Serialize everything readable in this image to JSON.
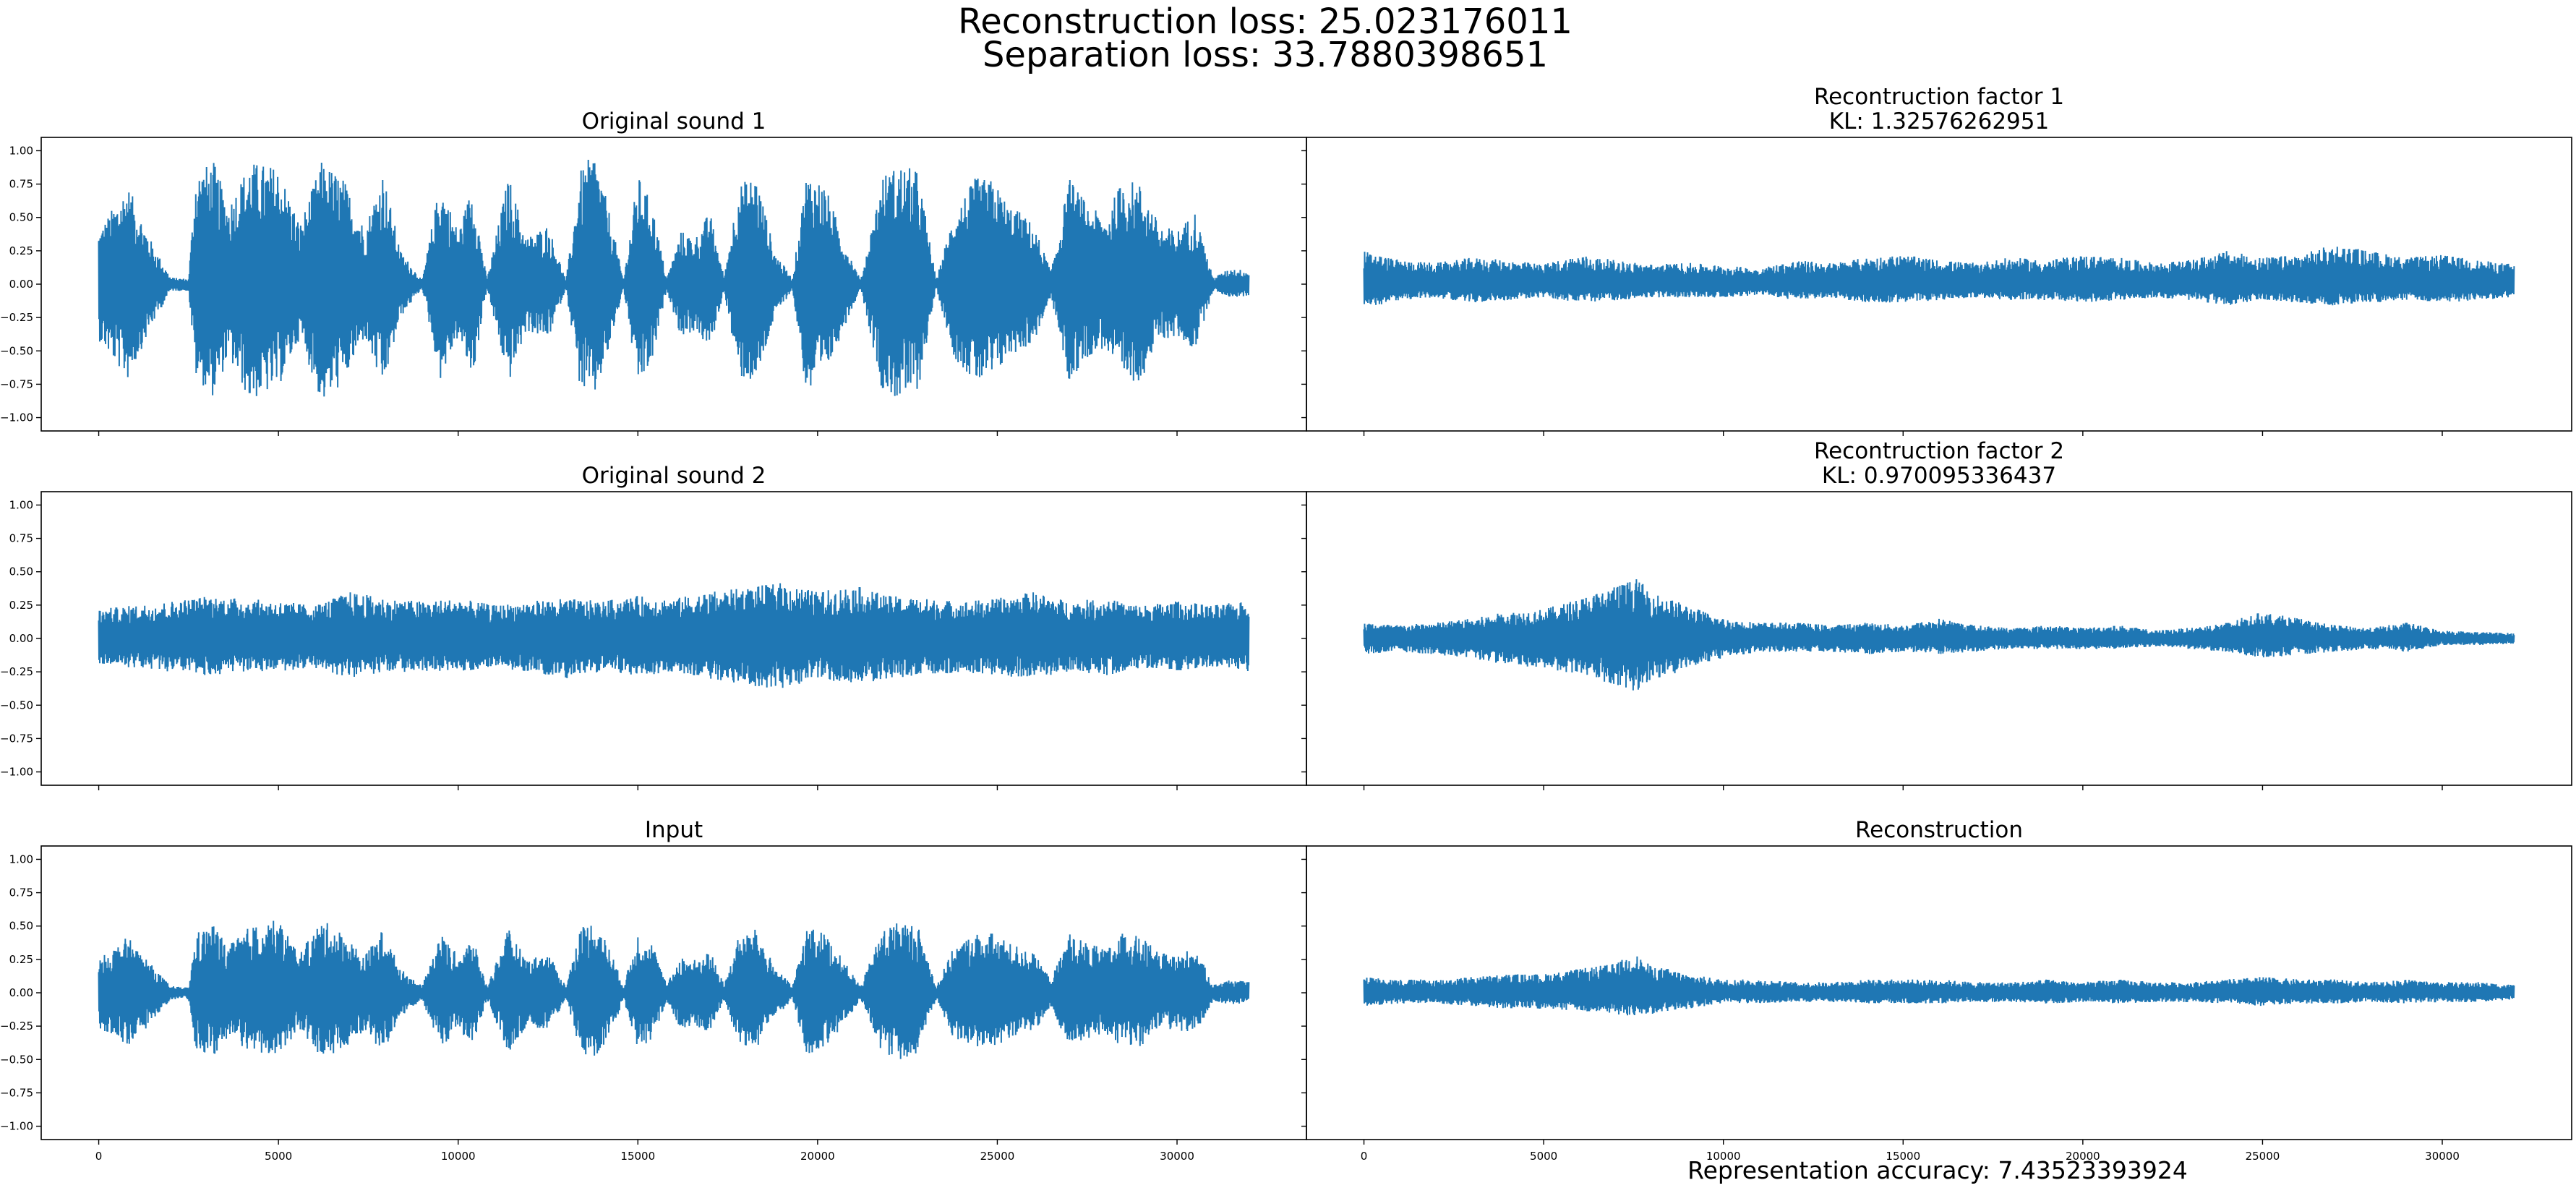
{
  "figure": {
    "suptitle_lines": [
      "Reconstruction loss: 25.023176011",
      "Separation loss: 33.7880398651"
    ],
    "footer": "Representation accuracy: 7.43523393924",
    "line_color": "#1f77b4"
  },
  "chart_data": {
    "type": "line",
    "grid": false,
    "shared_x_axis": true,
    "shared_y_axis": true,
    "xlim": [
      -1600,
      33600
    ],
    "ylim": [
      -1.1,
      1.1
    ],
    "x_ticks": [
      0,
      5000,
      10000,
      15000,
      20000,
      25000,
      30000
    ],
    "y_ticks": [
      -1.0,
      -0.75,
      -0.5,
      -0.25,
      0.0,
      0.25,
      0.5,
      0.75,
      1.0
    ],
    "x_tick_labels": [
      "0",
      "5000",
      "10000",
      "15000",
      "20000",
      "25000",
      "30000"
    ],
    "y_tick_labels": [
      "−1.00",
      "−0.75",
      "−0.50",
      "−0.25",
      "0.00",
      "0.25",
      "0.50",
      "0.75",
      "1.00"
    ],
    "n_samples": 32000,
    "panels": [
      {
        "title_lines": [
          "Original sound 1"
        ],
        "envelope": {
          "x": [
            0,
            800,
            1500,
            2000,
            2500,
            2700,
            3200,
            3600,
            4200,
            5000,
            5600,
            6200,
            6800,
            7400,
            7900,
            8400,
            9000,
            9500,
            10000,
            10400,
            10800,
            11400,
            11900,
            12500,
            13000,
            13400,
            13800,
            14200,
            14600,
            15000,
            15400,
            15800,
            16200,
            16600,
            17000,
            17400,
            17800,
            18300,
            18800,
            19300,
            19700,
            20200,
            20700,
            21200,
            21800,
            22300,
            22800,
            23300,
            23800,
            24400,
            24900,
            25300,
            25600,
            26000,
            26500,
            27000,
            27500,
            28000,
            28500,
            29000,
            29500,
            30000,
            30500,
            31000,
            31500,
            31999
          ],
          "upper": [
            0.4,
            0.75,
            0.3,
            0.05,
            0.04,
            0.85,
            0.92,
            0.6,
            0.92,
            0.88,
            0.45,
            0.92,
            0.8,
            0.42,
            0.85,
            0.25,
            0.03,
            0.78,
            0.4,
            0.75,
            0.03,
            0.82,
            0.35,
            0.45,
            0.03,
            0.85,
            1.0,
            0.55,
            0.03,
            0.82,
            0.6,
            0.04,
            0.4,
            0.35,
            0.55,
            0.05,
            0.75,
            0.82,
            0.25,
            0.04,
            0.85,
            0.75,
            0.35,
            0.03,
            0.82,
            0.9,
            0.85,
            0.03,
            0.55,
            0.8,
            0.78,
            0.6,
            0.55,
            0.45,
            0.1,
            0.8,
            0.6,
            0.5,
            0.8,
            0.75,
            0.45,
            0.4,
            0.55,
            0.05,
            0.12,
            0.1
          ],
          "lower": [
            -0.42,
            -0.72,
            -0.3,
            -0.05,
            -0.05,
            -0.7,
            -0.85,
            -0.55,
            -0.88,
            -0.78,
            -0.4,
            -0.9,
            -0.75,
            -0.4,
            -0.8,
            -0.25,
            -0.03,
            -0.72,
            -0.4,
            -0.72,
            -0.03,
            -0.75,
            -0.35,
            -0.42,
            -0.03,
            -0.8,
            -0.85,
            -0.5,
            -0.03,
            -0.78,
            -0.6,
            -0.04,
            -0.4,
            -0.35,
            -0.5,
            -0.05,
            -0.7,
            -0.75,
            -0.25,
            -0.04,
            -0.85,
            -0.7,
            -0.35,
            -0.03,
            -0.8,
            -0.88,
            -0.8,
            -0.03,
            -0.55,
            -0.75,
            -0.72,
            -0.55,
            -0.5,
            -0.45,
            -0.1,
            -0.75,
            -0.55,
            -0.48,
            -0.75,
            -0.72,
            -0.42,
            -0.4,
            -0.5,
            -0.05,
            -0.1,
            -0.09
          ]
        }
      },
      {
        "title_lines": [
          "Recontruction factor 1",
          "KL: 1.32576262951"
        ],
        "envelope": {
          "x": [
            0,
            1000,
            2000,
            3000,
            4000,
            5000,
            6000,
            7000,
            8000,
            9000,
            10000,
            11000,
            12000,
            13000,
            14000,
            15000,
            16000,
            17000,
            18000,
            19000,
            20000,
            21000,
            22000,
            23000,
            24000,
            25000,
            26000,
            27000,
            28000,
            29000,
            30000,
            31000,
            31999
          ],
          "upper": [
            0.25,
            0.18,
            0.16,
            0.2,
            0.18,
            0.15,
            0.22,
            0.18,
            0.15,
            0.16,
            0.14,
            0.12,
            0.18,
            0.16,
            0.2,
            0.22,
            0.18,
            0.16,
            0.2,
            0.18,
            0.22,
            0.2,
            0.16,
            0.18,
            0.25,
            0.2,
            0.22,
            0.3,
            0.25,
            0.2,
            0.22,
            0.18,
            0.15
          ],
          "lower": [
            -0.18,
            -0.12,
            -0.1,
            -0.14,
            -0.12,
            -0.1,
            -0.14,
            -0.12,
            -0.1,
            -0.1,
            -0.1,
            -0.08,
            -0.12,
            -0.1,
            -0.14,
            -0.14,
            -0.12,
            -0.1,
            -0.12,
            -0.12,
            -0.14,
            -0.12,
            -0.1,
            -0.12,
            -0.16,
            -0.12,
            -0.14,
            -0.16,
            -0.14,
            -0.12,
            -0.14,
            -0.12,
            -0.1
          ]
        }
      },
      {
        "title_lines": [
          "Original sound 2"
        ],
        "envelope": {
          "x": [
            0,
            1000,
            2000,
            3000,
            4000,
            5000,
            6000,
            7000,
            8000,
            9000,
            10000,
            11000,
            12000,
            13000,
            14000,
            15000,
            16000,
            17000,
            18000,
            19000,
            20000,
            21000,
            22000,
            23000,
            24000,
            25000,
            26000,
            27000,
            28000,
            29000,
            30000,
            31000,
            31999
          ],
          "upper": [
            0.22,
            0.25,
            0.28,
            0.32,
            0.3,
            0.28,
            0.25,
            0.35,
            0.3,
            0.28,
            0.3,
            0.25,
            0.28,
            0.3,
            0.28,
            0.32,
            0.3,
            0.35,
            0.38,
            0.42,
            0.35,
            0.4,
            0.32,
            0.3,
            0.28,
            0.3,
            0.35,
            0.28,
            0.3,
            0.25,
            0.28,
            0.25,
            0.28
          ],
          "lower": [
            -0.2,
            -0.22,
            -0.25,
            -0.28,
            -0.25,
            -0.25,
            -0.22,
            -0.3,
            -0.25,
            -0.25,
            -0.25,
            -0.22,
            -0.25,
            -0.3,
            -0.25,
            -0.28,
            -0.25,
            -0.3,
            -0.35,
            -0.38,
            -0.3,
            -0.35,
            -0.3,
            -0.28,
            -0.25,
            -0.28,
            -0.3,
            -0.25,
            -0.28,
            -0.22,
            -0.25,
            -0.22,
            -0.25
          ]
        }
      },
      {
        "title_lines": [
          "Recontruction factor 2",
          "KL: 0.970095336437"
        ],
        "envelope": {
          "x": [
            0,
            1000,
            2000,
            3000,
            4000,
            5000,
            6000,
            7000,
            7600,
            8000,
            8500,
            9000,
            10000,
            11000,
            12000,
            13000,
            14000,
            15000,
            16000,
            17000,
            18000,
            19000,
            20000,
            21000,
            22000,
            23000,
            24000,
            25000,
            26000,
            27000,
            28000,
            29000,
            30000,
            31000,
            31999
          ],
          "upper": [
            0.12,
            0.1,
            0.12,
            0.15,
            0.2,
            0.22,
            0.3,
            0.4,
            0.45,
            0.35,
            0.3,
            0.25,
            0.15,
            0.12,
            0.12,
            0.1,
            0.12,
            0.1,
            0.15,
            0.1,
            0.08,
            0.1,
            0.08,
            0.1,
            0.06,
            0.08,
            0.12,
            0.2,
            0.15,
            0.1,
            0.08,
            0.12,
            0.06,
            0.05,
            0.04
          ],
          "lower": [
            -0.12,
            -0.1,
            -0.12,
            -0.15,
            -0.2,
            -0.22,
            -0.28,
            -0.35,
            -0.4,
            -0.3,
            -0.28,
            -0.22,
            -0.15,
            -0.1,
            -0.1,
            -0.1,
            -0.12,
            -0.1,
            -0.12,
            -0.1,
            -0.08,
            -0.08,
            -0.08,
            -0.08,
            -0.06,
            -0.08,
            -0.1,
            -0.15,
            -0.12,
            -0.1,
            -0.08,
            -0.1,
            -0.05,
            -0.05,
            -0.04
          ]
        }
      },
      {
        "title_lines": [
          "Input"
        ],
        "envelope": {
          "x": [
            0,
            800,
            1500,
            2000,
            2500,
            2700,
            3200,
            3600,
            4200,
            5000,
            5600,
            6200,
            6800,
            7400,
            7900,
            8400,
            9000,
            9500,
            10000,
            10400,
            10800,
            11400,
            11900,
            12500,
            13000,
            13400,
            13800,
            14200,
            14600,
            15000,
            15400,
            15800,
            16200,
            16600,
            17000,
            17400,
            17800,
            18300,
            18800,
            19300,
            19700,
            20200,
            20700,
            21200,
            21800,
            22300,
            22800,
            23300,
            23800,
            24400,
            24900,
            25300,
            25600,
            26000,
            26500,
            27000,
            27500,
            28000,
            28500,
            29000,
            29500,
            30000,
            30500,
            31000,
            31500,
            31999
          ],
          "upper": [
            0.25,
            0.42,
            0.2,
            0.05,
            0.04,
            0.45,
            0.52,
            0.35,
            0.5,
            0.55,
            0.3,
            0.55,
            0.45,
            0.28,
            0.48,
            0.18,
            0.05,
            0.45,
            0.28,
            0.42,
            0.05,
            0.48,
            0.25,
            0.3,
            0.05,
            0.5,
            0.55,
            0.35,
            0.05,
            0.45,
            0.38,
            0.06,
            0.28,
            0.25,
            0.32,
            0.06,
            0.42,
            0.48,
            0.2,
            0.05,
            0.5,
            0.45,
            0.25,
            0.05,
            0.48,
            0.55,
            0.5,
            0.05,
            0.35,
            0.45,
            0.45,
            0.38,
            0.35,
            0.3,
            0.1,
            0.45,
            0.38,
            0.32,
            0.45,
            0.42,
            0.3,
            0.28,
            0.35,
            0.06,
            0.1,
            0.08
          ],
          "lower": [
            -0.28,
            -0.4,
            -0.22,
            -0.05,
            -0.05,
            -0.42,
            -0.48,
            -0.35,
            -0.48,
            -0.45,
            -0.28,
            -0.5,
            -0.42,
            -0.28,
            -0.45,
            -0.18,
            -0.05,
            -0.42,
            -0.28,
            -0.4,
            -0.05,
            -0.45,
            -0.25,
            -0.28,
            -0.05,
            -0.45,
            -0.48,
            -0.35,
            -0.05,
            -0.42,
            -0.35,
            -0.06,
            -0.28,
            -0.25,
            -0.3,
            -0.06,
            -0.4,
            -0.42,
            -0.2,
            -0.05,
            -0.48,
            -0.4,
            -0.25,
            -0.05,
            -0.45,
            -0.5,
            -0.45,
            -0.05,
            -0.35,
            -0.42,
            -0.4,
            -0.35,
            -0.32,
            -0.3,
            -0.1,
            -0.42,
            -0.35,
            -0.3,
            -0.42,
            -0.4,
            -0.28,
            -0.28,
            -0.32,
            -0.06,
            -0.09,
            -0.08
          ]
        }
      },
      {
        "title_lines": [
          "Reconstruction"
        ],
        "envelope": {
          "x": [
            0,
            1000,
            2000,
            3000,
            4000,
            5000,
            6000,
            7000,
            7500,
            8000,
            8500,
            9000,
            10000,
            11000,
            12000,
            13000,
            14000,
            15000,
            16000,
            17000,
            18000,
            19000,
            20000,
            21000,
            22000,
            23000,
            24000,
            25000,
            26000,
            27000,
            28000,
            29000,
            30000,
            31000,
            31999
          ],
          "upper": [
            0.12,
            0.1,
            0.1,
            0.12,
            0.14,
            0.14,
            0.18,
            0.22,
            0.3,
            0.2,
            0.18,
            0.14,
            0.1,
            0.1,
            0.08,
            0.08,
            0.1,
            0.1,
            0.1,
            0.08,
            0.08,
            0.1,
            0.08,
            0.1,
            0.08,
            0.08,
            0.1,
            0.12,
            0.1,
            0.1,
            0.08,
            0.1,
            0.08,
            0.08,
            0.06
          ],
          "lower": [
            -0.1,
            -0.08,
            -0.08,
            -0.1,
            -0.12,
            -0.12,
            -0.14,
            -0.16,
            -0.18,
            -0.16,
            -0.14,
            -0.12,
            -0.08,
            -0.08,
            -0.07,
            -0.07,
            -0.08,
            -0.08,
            -0.08,
            -0.07,
            -0.07,
            -0.08,
            -0.07,
            -0.08,
            -0.07,
            -0.07,
            -0.08,
            -0.1,
            -0.08,
            -0.08,
            -0.07,
            -0.08,
            -0.07,
            -0.07,
            -0.05
          ]
        }
      }
    ]
  }
}
